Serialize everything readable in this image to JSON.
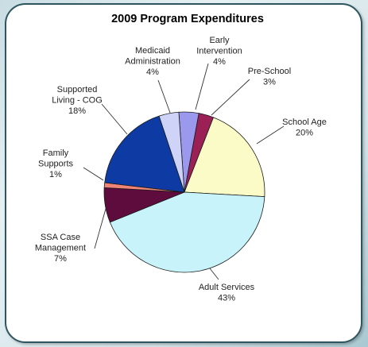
{
  "chart_data": {
    "type": "pie",
    "title": "2009 Program Expenditures",
    "slices": [
      {
        "label": "Early Intervention",
        "value": 4,
        "value_label": "4%",
        "color": "#9a99ee"
      },
      {
        "label": "Pre-School",
        "value": 3,
        "value_label": "3%",
        "color": "#9b2055"
      },
      {
        "label": "School Age",
        "value": 20,
        "value_label": "20%",
        "color": "#fafbc6"
      },
      {
        "label": "Adult Services",
        "value": 43,
        "value_label": "43%",
        "color": "#c8f3fa"
      },
      {
        "label": "SSA Case Management",
        "value": 7,
        "value_label": "7%",
        "color": "#5e0b3d"
      },
      {
        "label": "Family Supports",
        "value": 1,
        "value_label": "1%",
        "color": "#f08476"
      },
      {
        "label": "Supported Living - COG",
        "value": 18,
        "value_label": "18%",
        "color": "#0e3aa3"
      },
      {
        "label": "Medicaid Administration",
        "value": 4,
        "value_label": "4%",
        "color": "#cfd3f8"
      }
    ],
    "legend": "none"
  }
}
